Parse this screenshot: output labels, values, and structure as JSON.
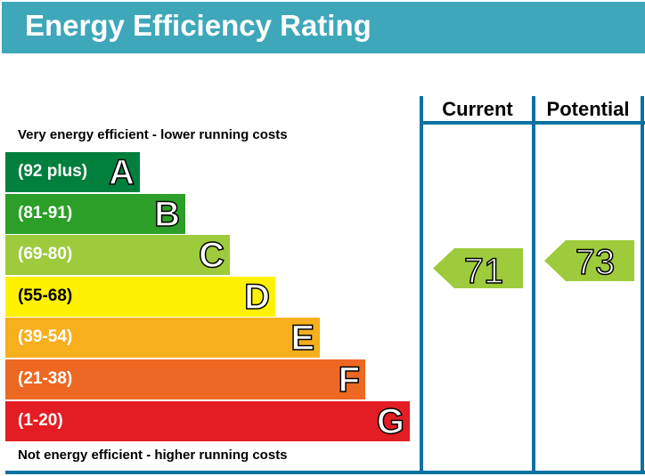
{
  "title": "Energy Efficiency Rating",
  "chart_data": {
    "type": "epc-rating",
    "title": "Energy Efficiency Rating",
    "top_label": "Very energy efficient - lower running costs",
    "bottom_label": "Not energy efficient - higher running costs",
    "bands": [
      {
        "letter": "A",
        "range": "(92 plus)",
        "color": "#007f3d"
      },
      {
        "letter": "B",
        "range": "(81-91)",
        "color": "#2c9f29"
      },
      {
        "letter": "C",
        "range": "(69-80)",
        "color": "#9dcb3c"
      },
      {
        "letter": "D",
        "range": "(55-68)",
        "color": "#fff200"
      },
      {
        "letter": "E",
        "range": "(39-54)",
        "color": "#f7af1d"
      },
      {
        "letter": "F",
        "range": "(21-38)",
        "color": "#ed6823"
      },
      {
        "letter": "G",
        "range": "(1-20)",
        "color": "#e31d23"
      }
    ],
    "columns": [
      "Current",
      "Potential"
    ],
    "current": {
      "value": "71",
      "band": "C",
      "color": "#9dcb3c"
    },
    "potential": {
      "value": "73",
      "band": "C",
      "color": "#9dcb3c"
    }
  }
}
